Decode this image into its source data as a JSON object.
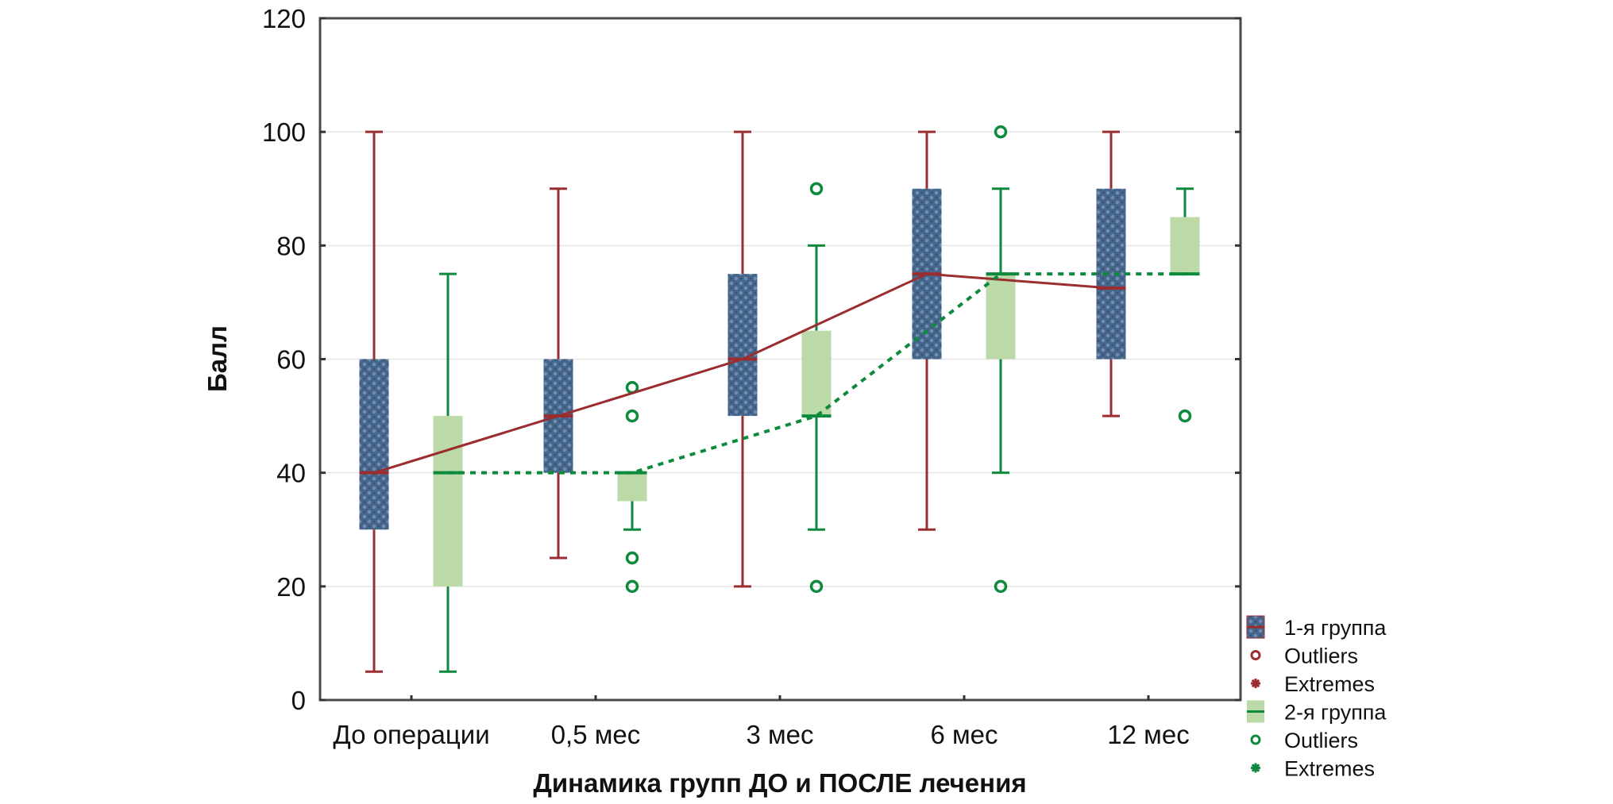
{
  "chart_data": {
    "type": "boxplot",
    "title": "",
    "xlabel": "Динамика групп ДО и ПОСЛЕ лечения",
    "ylabel": "Балл",
    "ylim": [
      0,
      120
    ],
    "yticks": [
      0,
      20,
      40,
      60,
      80,
      100,
      120
    ],
    "grid": true,
    "categories": [
      "До операции",
      "0,5 мес",
      "3 мес",
      "6 мес",
      "12 мес"
    ],
    "legend_position": "bottom-right (outside)",
    "legend": [
      {
        "label": "1-я группа",
        "kind": "box",
        "series": 0
      },
      {
        "label": "Outliers",
        "kind": "outlier",
        "series": 0
      },
      {
        "label": "Extremes",
        "kind": "extreme",
        "series": 0
      },
      {
        "label": "2-я группа",
        "kind": "box",
        "series": 1
      },
      {
        "label": "Outliers",
        "kind": "outlier",
        "series": 1
      },
      {
        "label": "Extremes",
        "kind": "extreme",
        "series": 1
      }
    ],
    "series": [
      {
        "name": "1-я группа",
        "color": "#9b2d30",
        "box_color": "#4a6a8e",
        "median_line": "solid",
        "boxes": [
          {
            "whisker_low": 5,
            "q1": 30,
            "median": 40,
            "q3": 60,
            "whisker_high": 100,
            "outliers": []
          },
          {
            "whisker_low": 25,
            "q1": 40,
            "median": 50,
            "q3": 60,
            "whisker_high": 90,
            "outliers": []
          },
          {
            "whisker_low": 20,
            "q1": 50,
            "median": 60,
            "q3": 75,
            "whisker_high": 100,
            "outliers": []
          },
          {
            "whisker_low": 30,
            "q1": 60,
            "median": 75,
            "q3": 90,
            "whisker_high": 100,
            "outliers": []
          },
          {
            "whisker_low": 50,
            "q1": 60,
            "median": 72.5,
            "q3": 90,
            "whisker_high": 100,
            "outliers": []
          }
        ]
      },
      {
        "name": "2-я группа",
        "color": "#0e8a3e",
        "box_color": "#bcd9a8",
        "median_line": "dotted",
        "boxes": [
          {
            "whisker_low": 5,
            "q1": 20,
            "median": 40,
            "q3": 50,
            "whisker_high": 75,
            "outliers": []
          },
          {
            "whisker_low": 30,
            "q1": 35,
            "median": 40,
            "q3": 40,
            "whisker_high": 40,
            "outliers": [
              55,
              50,
              25,
              20
            ]
          },
          {
            "whisker_low": 30,
            "q1": 50,
            "median": 50,
            "q3": 65,
            "whisker_high": 80,
            "outliers": [
              90,
              20
            ]
          },
          {
            "whisker_low": 40,
            "q1": 60,
            "median": 75,
            "q3": 75,
            "whisker_high": 90,
            "outliers": [
              100,
              20
            ]
          },
          {
            "whisker_low": 75,
            "q1": 75,
            "median": 75,
            "q3": 85,
            "whisker_high": 90,
            "outliers": [
              50
            ]
          }
        ]
      }
    ]
  }
}
